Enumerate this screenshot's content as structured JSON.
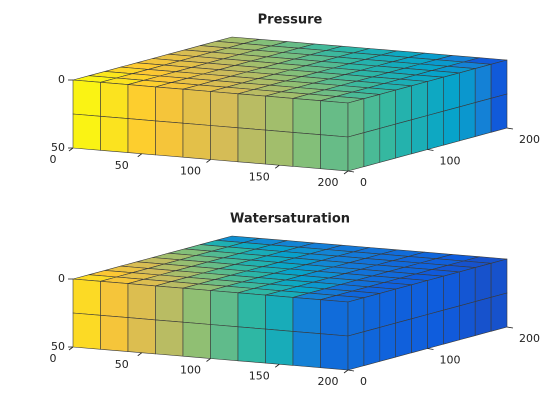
{
  "chart_data": [
    {
      "type": "grid3d",
      "title": "Pressure",
      "xlim": [
        0,
        200
      ],
      "ylim": [
        0,
        200
      ],
      "zlim": [
        0,
        50
      ],
      "zreverse": true,
      "xticks": [
        0,
        50,
        100,
        150,
        200
      ],
      "yticks": [
        0,
        100,
        200
      ],
      "zticks": [
        0,
        50
      ],
      "clim": [
        0,
        1
      ],
      "colormap": [
        "#352a87",
        "#0f5cdd",
        "#1481d6",
        "#06a4ca",
        "#2eb7a4",
        "#87bf77",
        "#d1bb59",
        "#fec832",
        "#f9fb0e"
      ],
      "values": [
        [
          0.98,
          0.94,
          0.89,
          0.85,
          0.8,
          0.76,
          0.71,
          0.67,
          0.62,
          0.58
        ],
        [
          0.95,
          0.9,
          0.86,
          0.81,
          0.77,
          0.72,
          0.68,
          0.63,
          0.59,
          0.54
        ],
        [
          0.91,
          0.87,
          0.82,
          0.78,
          0.73,
          0.69,
          0.64,
          0.6,
          0.55,
          0.51
        ],
        [
          0.88,
          0.83,
          0.79,
          0.74,
          0.7,
          0.65,
          0.61,
          0.56,
          0.52,
          0.47
        ],
        [
          0.84,
          0.8,
          0.75,
          0.71,
          0.66,
          0.62,
          0.57,
          0.53,
          0.48,
          0.44
        ],
        [
          0.81,
          0.76,
          0.72,
          0.67,
          0.63,
          0.58,
          0.54,
          0.49,
          0.45,
          0.4
        ],
        [
          0.77,
          0.73,
          0.68,
          0.64,
          0.59,
          0.55,
          0.5,
          0.46,
          0.41,
          0.37
        ],
        [
          0.74,
          0.69,
          0.65,
          0.6,
          0.56,
          0.51,
          0.47,
          0.42,
          0.38,
          0.33
        ],
        [
          0.7,
          0.66,
          0.61,
          0.57,
          0.52,
          0.48,
          0.43,
          0.39,
          0.34,
          0.25
        ],
        [
          0.67,
          0.62,
          0.58,
          0.53,
          0.49,
          0.44,
          0.4,
          0.35,
          0.25,
          0.12
        ]
      ]
    },
    {
      "type": "grid3d",
      "title": "Watersaturation",
      "xlim": [
        0,
        200
      ],
      "ylim": [
        0,
        200
      ],
      "zlim": [
        0,
        50
      ],
      "zreverse": true,
      "xticks": [
        0,
        50,
        100,
        150,
        200
      ],
      "yticks": [
        0,
        100,
        200
      ],
      "zticks": [
        0,
        50
      ],
      "clim": [
        0,
        1
      ],
      "colormap": [
        "#352a87",
        "#0f5cdd",
        "#1481d6",
        "#06a4ca",
        "#2eb7a4",
        "#87bf77",
        "#d1bb59",
        "#fec832",
        "#f9fb0e"
      ],
      "values": [
        [
          0.92,
          0.85,
          0.78,
          0.71,
          0.64,
          0.57,
          0.5,
          0.43,
          0.25,
          0.18
        ],
        [
          0.87,
          0.8,
          0.73,
          0.66,
          0.59,
          0.52,
          0.45,
          0.38,
          0.22,
          0.16
        ],
        [
          0.82,
          0.75,
          0.68,
          0.61,
          0.54,
          0.47,
          0.4,
          0.33,
          0.2,
          0.15
        ],
        [
          0.77,
          0.7,
          0.63,
          0.56,
          0.49,
          0.42,
          0.35,
          0.28,
          0.19,
          0.14
        ],
        [
          0.72,
          0.65,
          0.58,
          0.51,
          0.44,
          0.37,
          0.3,
          0.23,
          0.18,
          0.14
        ],
        [
          0.67,
          0.6,
          0.53,
          0.46,
          0.39,
          0.32,
          0.25,
          0.2,
          0.17,
          0.13
        ],
        [
          0.62,
          0.55,
          0.48,
          0.41,
          0.34,
          0.27,
          0.22,
          0.19,
          0.16,
          0.12
        ],
        [
          0.57,
          0.5,
          0.43,
          0.36,
          0.29,
          0.24,
          0.2,
          0.17,
          0.15,
          0.11
        ],
        [
          0.45,
          0.4,
          0.36,
          0.31,
          0.26,
          0.22,
          0.19,
          0.16,
          0.14,
          0.1
        ],
        [
          0.3,
          0.28,
          0.26,
          0.24,
          0.22,
          0.2,
          0.18,
          0.16,
          0.13,
          0.1
        ]
      ]
    }
  ]
}
